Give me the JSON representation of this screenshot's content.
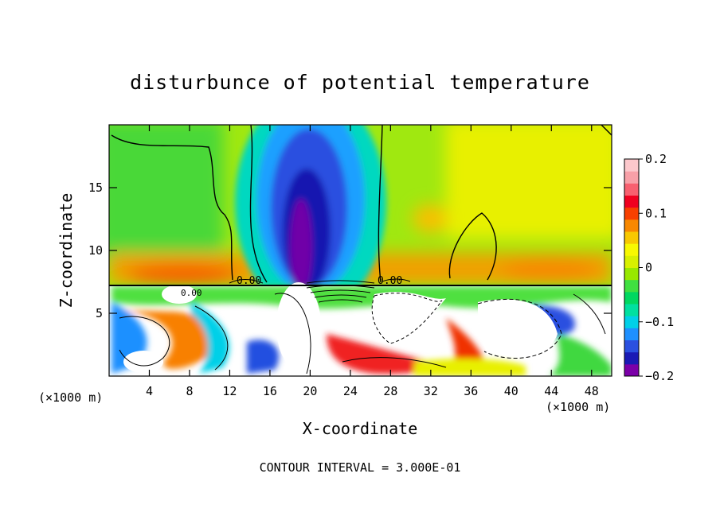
{
  "chart_data": {
    "type": "heatmap",
    "title": "disturbunce of potential temperature",
    "xlabel": "X-coordinate",
    "ylabel": "Z-coordinate",
    "x_unit": "(×1000 m)",
    "x_unit_right": "(×1000 m)",
    "xlim": [
      0,
      50
    ],
    "ylim": [
      0,
      20
    ],
    "x_ticks": [
      4,
      8,
      12,
      16,
      20,
      24,
      28,
      32,
      36,
      40,
      44,
      48
    ],
    "y_ticks": [
      5,
      10,
      15
    ],
    "colorbar": {
      "range": [
        -0.2,
        0.2
      ],
      "tick_labels": [
        "0.2",
        "0.1",
        "0",
        "−0.1",
        "−0.2"
      ],
      "tick_values": [
        0.2,
        0.1,
        0,
        -0.1,
        -0.2
      ],
      "colors": [
        "#7b00a8",
        "#1a1ab5",
        "#2a50e0",
        "#1e90ff",
        "#00d0e8",
        "#00e0a0",
        "#00d860",
        "#40e040",
        "#98e800",
        "#d8f000",
        "#f8f800",
        "#f8c800",
        "#f88800",
        "#f84000",
        "#f00020",
        "#f86070",
        "#f8a0a8",
        "#fcc8cc"
      ]
    },
    "annotation": "CONTOUR INTERVAL = 3.000E-01",
    "contour_labels": [
      "0.00",
      "0.00",
      "0.00"
    ],
    "regions": [
      {
        "name": "background",
        "value": 0.04,
        "description": "upper layer mostly near zero"
      },
      {
        "name": "plume",
        "x": 20,
        "z_range": [
          7.4,
          20
        ],
        "value": -0.2
      },
      {
        "name": "warm-band",
        "z": 8,
        "value": 0.1
      },
      {
        "name": "warm-patch",
        "x": 31,
        "z": 12.5,
        "value": 0.09
      },
      {
        "name": "turbulent-lower-layer",
        "z_range": [
          0,
          7.4
        ],
        "value_range": [
          -0.2,
          0.2
        ]
      }
    ]
  }
}
